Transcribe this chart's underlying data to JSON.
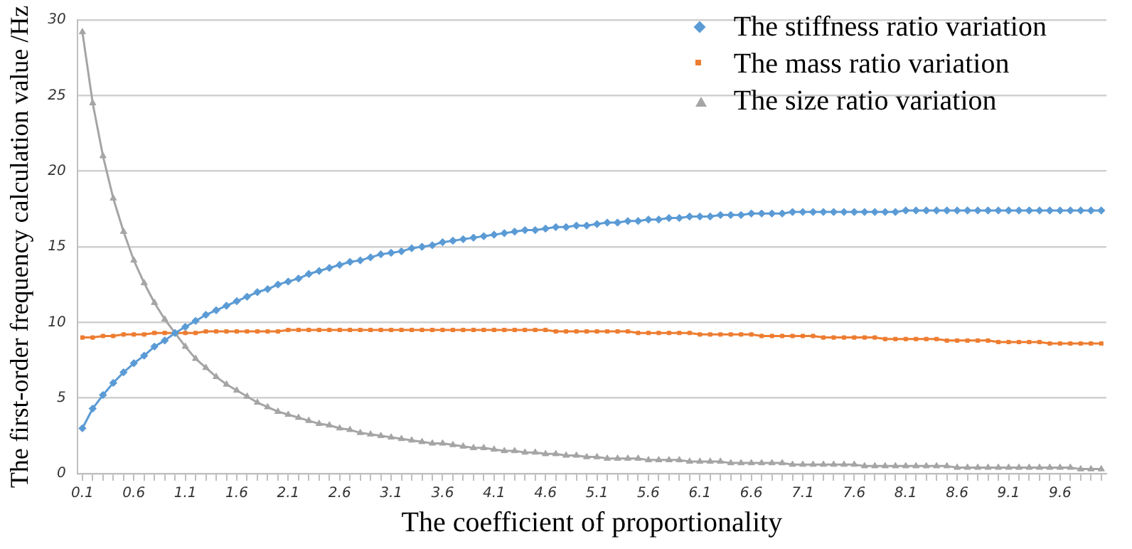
{
  "chart_data": {
    "type": "line",
    "xlabel": "The coefficient of proportionality",
    "ylabel": "The first-order frequency calculation value /Hz",
    "categories": [
      "0.1",
      null,
      null,
      null,
      null,
      "0.6",
      null,
      null,
      null,
      null,
      "1.1",
      null,
      null,
      null,
      null,
      "1.6",
      null,
      null,
      null,
      null,
      "2.1",
      null,
      null,
      null,
      null,
      "2.6",
      null,
      null,
      null,
      null,
      "3.1",
      null,
      null,
      null,
      null,
      "3.6",
      null,
      null,
      null,
      null,
      "4.1",
      null,
      null,
      null,
      null,
      "4.6",
      null,
      null,
      null,
      null,
      "5.1",
      null,
      null,
      null,
      null,
      "5.6",
      null,
      null,
      null,
      null,
      "6.1",
      null,
      null,
      null,
      null,
      "6.6",
      null,
      null,
      null,
      null,
      "7.1",
      null,
      null,
      null,
      null,
      "7.6",
      null,
      null,
      null,
      null,
      "8.1",
      null,
      null,
      null,
      null,
      "8.6",
      null,
      null,
      null,
      null,
      "9.1",
      null,
      null,
      null,
      null,
      "9.6",
      null,
      null,
      null,
      null
    ],
    "ylim": [
      0,
      30
    ],
    "yticks": [
      0,
      5,
      10,
      15,
      20,
      25,
      30
    ],
    "grid": "y",
    "legend": "top right",
    "line_style": "solid",
    "series": [
      {
        "name": "The stiffness ratio variation",
        "color": "#5b9bd5",
        "marker": "diamond",
        "values": [
          3.0,
          4.3,
          5.2,
          6.0,
          6.7,
          7.3,
          7.8,
          8.4,
          8.8,
          9.3,
          9.7,
          10.1,
          10.5,
          10.8,
          11.1,
          11.4,
          11.7,
          12.0,
          12.2,
          12.5,
          12.7,
          12.9,
          13.2,
          13.4,
          13.6,
          13.8,
          14.0,
          14.1,
          14.3,
          14.5,
          14.6,
          14.7,
          14.9,
          15.0,
          15.1,
          15.3,
          15.4,
          15.5,
          15.6,
          15.7,
          15.8,
          15.9,
          16.0,
          16.1,
          16.1,
          16.2,
          16.3,
          16.3,
          16.4,
          16.4,
          16.5,
          16.6,
          16.6,
          16.7,
          16.7,
          16.8,
          16.8,
          16.9,
          16.9,
          17.0,
          17.0,
          17.0,
          17.1,
          17.1,
          17.1,
          17.2,
          17.2,
          17.2,
          17.2,
          17.3,
          17.3,
          17.3,
          17.3,
          17.3,
          17.3,
          17.3,
          17.3,
          17.3,
          17.3,
          17.3,
          17.4,
          17.4,
          17.4,
          17.4,
          17.4,
          17.4,
          17.4,
          17.4,
          17.4,
          17.4,
          17.4,
          17.4,
          17.4,
          17.4,
          17.4,
          17.4,
          17.4,
          17.4,
          17.4,
          17.4
        ]
      },
      {
        "name": "The mass ratio variation",
        "color": "#ed7d31",
        "marker": "square",
        "values": [
          9.0,
          9.0,
          9.1,
          9.1,
          9.2,
          9.2,
          9.2,
          9.3,
          9.3,
          9.3,
          9.3,
          9.3,
          9.4,
          9.4,
          9.4,
          9.4,
          9.4,
          9.4,
          9.4,
          9.4,
          9.5,
          9.5,
          9.5,
          9.5,
          9.5,
          9.5,
          9.5,
          9.5,
          9.5,
          9.5,
          9.5,
          9.5,
          9.5,
          9.5,
          9.5,
          9.5,
          9.5,
          9.5,
          9.5,
          9.5,
          9.5,
          9.5,
          9.5,
          9.5,
          9.5,
          9.5,
          9.4,
          9.4,
          9.4,
          9.4,
          9.4,
          9.4,
          9.4,
          9.4,
          9.3,
          9.3,
          9.3,
          9.3,
          9.3,
          9.3,
          9.2,
          9.2,
          9.2,
          9.2,
          9.2,
          9.2,
          9.1,
          9.1,
          9.1,
          9.1,
          9.1,
          9.1,
          9.0,
          9.0,
          9.0,
          9.0,
          9.0,
          9.0,
          8.9,
          8.9,
          8.9,
          8.9,
          8.9,
          8.9,
          8.8,
          8.8,
          8.8,
          8.8,
          8.8,
          8.7,
          8.7,
          8.7,
          8.7,
          8.7,
          8.6,
          8.6,
          8.6,
          8.6,
          8.6,
          8.6
        ]
      },
      {
        "name": "The size ratio variation",
        "color": "#a5a5a5",
        "marker": "triangle",
        "values": [
          29.2,
          24.5,
          21.0,
          18.2,
          16.0,
          14.1,
          12.6,
          11.3,
          10.2,
          9.3,
          8.4,
          7.6,
          7.0,
          6.4,
          5.9,
          5.5,
          5.1,
          4.7,
          4.4,
          4.1,
          3.9,
          3.7,
          3.5,
          3.3,
          3.2,
          3.0,
          2.9,
          2.7,
          2.6,
          2.5,
          2.4,
          2.3,
          2.2,
          2.1,
          2.0,
          2.0,
          1.9,
          1.8,
          1.7,
          1.7,
          1.6,
          1.5,
          1.5,
          1.4,
          1.4,
          1.3,
          1.3,
          1.2,
          1.2,
          1.1,
          1.1,
          1.0,
          1.0,
          1.0,
          1.0,
          0.9,
          0.9,
          0.9,
          0.9,
          0.8,
          0.8,
          0.8,
          0.8,
          0.7,
          0.7,
          0.7,
          0.7,
          0.7,
          0.7,
          0.6,
          0.6,
          0.6,
          0.6,
          0.6,
          0.6,
          0.6,
          0.5,
          0.5,
          0.5,
          0.5,
          0.5,
          0.5,
          0.5,
          0.5,
          0.5,
          0.4,
          0.4,
          0.4,
          0.4,
          0.4,
          0.4,
          0.4,
          0.4,
          0.4,
          0.4,
          0.4,
          0.4,
          0.3,
          0.3,
          0.3
        ]
      }
    ]
  }
}
